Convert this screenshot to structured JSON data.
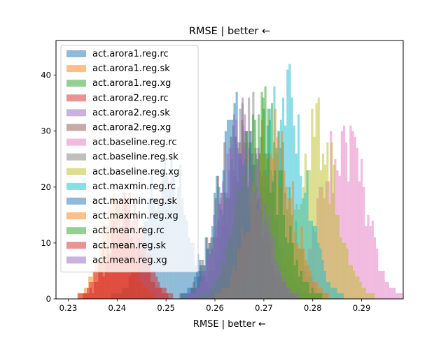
{
  "chart_data": {
    "type": "histogram",
    "title": "RMSE | better ←",
    "xlabel": "RMSE | better ←",
    "ylabel": "",
    "xlim": [
      0.2275,
      0.2985
    ],
    "ylim": [
      0,
      46.2
    ],
    "x_ticks": [
      0.23,
      0.24,
      0.25,
      0.26,
      0.27,
      0.28,
      0.29
    ],
    "x_tick_labels": [
      "0.23",
      "0.24",
      "0.25",
      "0.26",
      "0.27",
      "0.28",
      "0.29"
    ],
    "y_ticks": [
      0,
      10,
      20,
      30,
      40
    ],
    "y_tick_labels": [
      "0",
      "10",
      "20",
      "30",
      "40"
    ],
    "legend_position": "upper-left",
    "grid": false,
    "bar_alpha": 0.5,
    "series": [
      {
        "name": "act.arora1.reg.rc",
        "color": "#1f77b4",
        "center": 0.25,
        "sd": 0.004,
        "peak": 23,
        "seed": 1
      },
      {
        "name": "act.arora1.reg.sk",
        "color": "#ff7f0e",
        "center": 0.2395,
        "sd": 0.003,
        "peak": 17,
        "seed": 2
      },
      {
        "name": "act.arora1.reg.xg",
        "color": "#2ca02c",
        "center": 0.27,
        "sd": 0.0046,
        "peak": 30,
        "seed": 3
      },
      {
        "name": "act.arora2.reg.rc",
        "color": "#d62728",
        "center": 0.242,
        "sd": 0.0035,
        "peak": 15,
        "seed": 4
      },
      {
        "name": "act.arora2.reg.sk",
        "color": "#9467bd",
        "center": 0.265,
        "sd": 0.004,
        "peak": 31,
        "seed": 5
      },
      {
        "name": "act.arora2.reg.xg",
        "color": "#8c564b",
        "center": 0.264,
        "sd": 0.004,
        "peak": 27,
        "seed": 6
      },
      {
        "name": "act.baseline.reg.rc",
        "color": "#e377c2",
        "center": 0.286,
        "sd": 0.0042,
        "peak": 30,
        "seed": 7
      },
      {
        "name": "act.baseline.reg.sk",
        "color": "#7f7f7f",
        "center": 0.267,
        "sd": 0.0042,
        "peak": 30,
        "seed": 8
      },
      {
        "name": "act.baseline.reg.xg",
        "color": "#bcbd22",
        "center": 0.281,
        "sd": 0.004,
        "peak": 28,
        "seed": 9
      },
      {
        "name": "act.maxmin.reg.rc",
        "color": "#17becf",
        "center": 0.274,
        "sd": 0.0042,
        "peak": 34,
        "seed": 10
      },
      {
        "name": "act.maxmin.reg.sk",
        "color": "#1f77b4",
        "center": 0.2645,
        "sd": 0.0042,
        "peak": 29,
        "seed": 11
      },
      {
        "name": "act.maxmin.reg.xg",
        "color": "#ff7f0e",
        "center": 0.2715,
        "sd": 0.0042,
        "peak": 29,
        "seed": 12
      },
      {
        "name": "act.mean.reg.rc",
        "color": "#2ca02c",
        "center": 0.269,
        "sd": 0.0044,
        "peak": 30,
        "seed": 13
      },
      {
        "name": "act.mean.reg.sk",
        "color": "#d62728",
        "center": 0.241,
        "sd": 0.0035,
        "peak": 16,
        "seed": 14
      },
      {
        "name": "act.mean.reg.xg",
        "color": "#9467bd",
        "center": 0.2655,
        "sd": 0.004,
        "peak": 29,
        "seed": 15
      }
    ]
  }
}
